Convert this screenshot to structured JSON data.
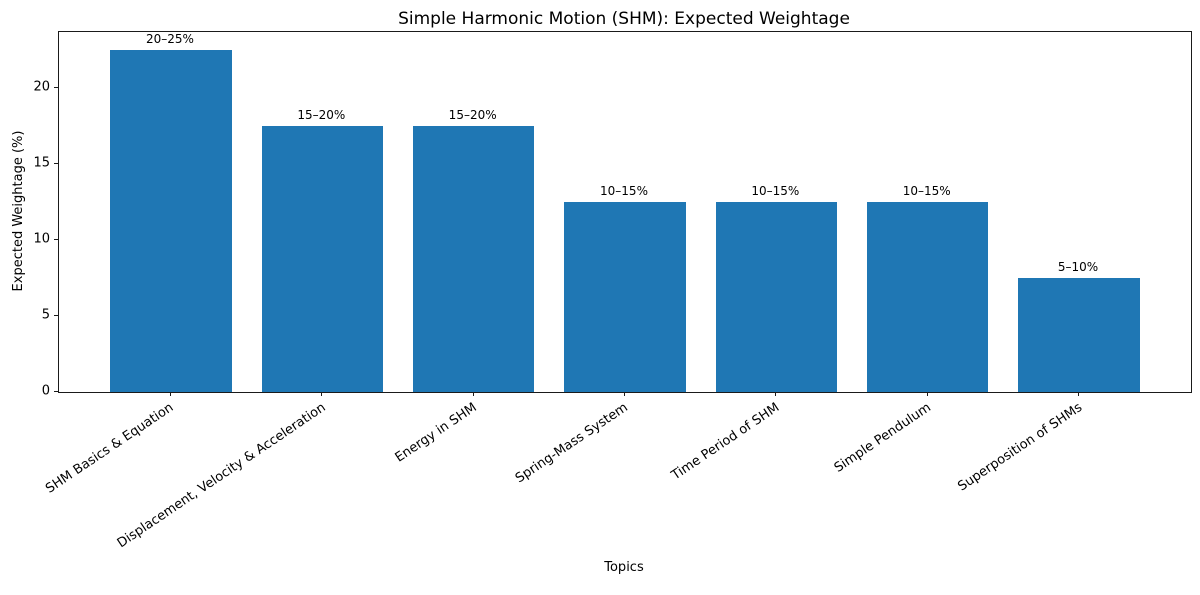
{
  "chart_data": {
    "type": "bar",
    "title": "Simple Harmonic Motion (SHM): Expected Weightage",
    "xlabel": "Topics",
    "ylabel": "Expected Weightage (%)",
    "categories": [
      "SHM Basics & Equation",
      "Displacement, Velocity & Acceleration",
      "Energy in SHM",
      "Spring-Mass System",
      "Time Period of SHM",
      "Simple Pendulum",
      "Superposition of SHMs"
    ],
    "values": [
      22.5,
      17.5,
      17.5,
      12.5,
      12.5,
      12.5,
      7.5
    ],
    "bar_labels": [
      "20–25%",
      "15–20%",
      "15–20%",
      "10–15%",
      "10–15%",
      "10–15%",
      "5–10%"
    ],
    "yticks": [
      0,
      5,
      10,
      15,
      20
    ],
    "ylim": [
      0,
      23.7
    ],
    "bar_color": "#1f77b4",
    "grid": false,
    "legend_position": "none",
    "bar_width_fraction": 0.8,
    "x_label_rotation_deg": 34
  }
}
